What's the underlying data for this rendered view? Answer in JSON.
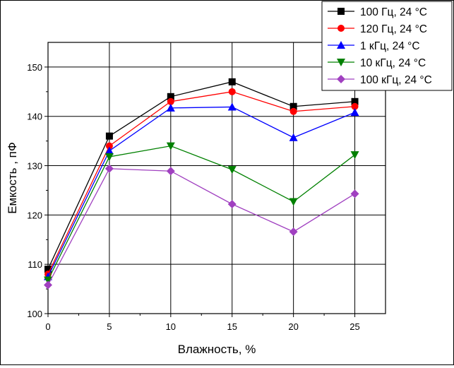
{
  "chart_data": {
    "type": "line",
    "title": "",
    "xlabel": "Влажность, %",
    "ylabel": "Емкость , пФ",
    "x": [
      0,
      5,
      10,
      15,
      20,
      25
    ],
    "xlim": [
      0,
      27.5
    ],
    "ylim": [
      100,
      155
    ],
    "xticks": [
      "0",
      "5",
      "10",
      "15",
      "20",
      "25"
    ],
    "yticks": [
      "100",
      "110",
      "120",
      "130",
      "140",
      "150"
    ],
    "grid": true,
    "legend_position": "top-right",
    "series": [
      {
        "name": "100 Гц, 24 °C",
        "color": "#000000",
        "marker": "square",
        "values": [
          109,
          136,
          144,
          147,
          142,
          143
        ]
      },
      {
        "name": "120 Гц, 24 °C",
        "color": "#ff0000",
        "marker": "circle",
        "values": [
          108,
          134,
          143,
          145,
          141,
          142
        ]
      },
      {
        "name": "1 кГц, 24 °C",
        "color": "#0000ff",
        "marker": "triangle-up",
        "values": [
          107.5,
          133,
          141.7,
          141.9,
          135.7,
          140.8
        ]
      },
      {
        "name": "10 кГц, 24 °C",
        "color": "#008000",
        "marker": "triangle-down",
        "values": [
          106.8,
          131.8,
          134,
          129.2,
          122.7,
          132.2
        ]
      },
      {
        "name": "100 кГц, 24 °C",
        "color": "#a040c0",
        "marker": "diamond",
        "values": [
          105.8,
          129.4,
          128.9,
          122.2,
          116.6,
          124.3
        ]
      }
    ]
  }
}
